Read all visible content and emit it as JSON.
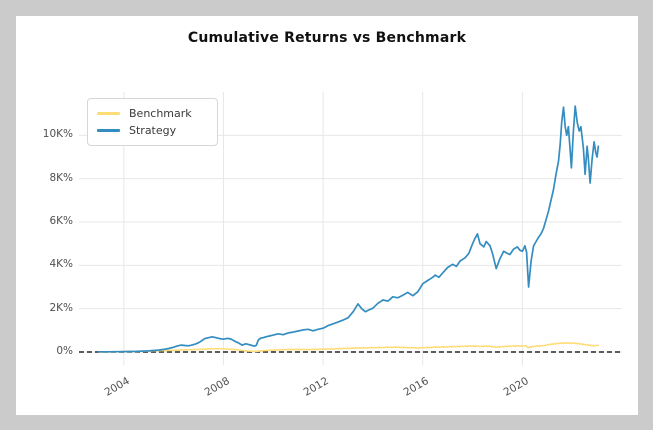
{
  "window": {
    "background_color": "#cbcbcb",
    "figure_background_color": "#ffffff"
  },
  "chart_data": {
    "type": "line",
    "title": "Cumulative Returns vs Benchmark",
    "xlabel": "",
    "ylabel": "",
    "grid": true,
    "grid_color": "#e7e7e7",
    "x_axis": {
      "range": [
        2002.2,
        2024.0
      ],
      "ticks": [
        {
          "value": 2004,
          "label": "2004"
        },
        {
          "value": 2008,
          "label": "2008"
        },
        {
          "value": 2012,
          "label": "2012"
        },
        {
          "value": 2016,
          "label": "2016"
        },
        {
          "value": 2020,
          "label": "2020"
        }
      ],
      "tick_rotation_deg": -30
    },
    "y_axis": {
      "unit": "percent",
      "range": [
        -600,
        12000
      ],
      "ticks": [
        {
          "value": 0,
          "label": "0%"
        },
        {
          "value": 2000,
          "label": "2K%"
        },
        {
          "value": 4000,
          "label": "4K%"
        },
        {
          "value": 6000,
          "label": "6K%"
        },
        {
          "value": 8000,
          "label": "8K%"
        },
        {
          "value": 10000,
          "label": "10K%"
        }
      ]
    },
    "zero_line": {
      "value": 0,
      "style": "dashed",
      "color": "#262626"
    },
    "legend": {
      "position": "upper-left",
      "items": [
        {
          "label": "Benchmark",
          "color": "#fedd78"
        },
        {
          "label": "Strategy",
          "color": "#348dc1"
        }
      ]
    },
    "series": [
      {
        "name": "Benchmark",
        "color": "#fedd78",
        "line_width": 1.6,
        "points": [
          [
            2003.0,
            2
          ],
          [
            2003.5,
            10
          ],
          [
            2004.0,
            20
          ],
          [
            2004.5,
            30
          ],
          [
            2005.0,
            40
          ],
          [
            2005.5,
            60
          ],
          [
            2006.0,
            80
          ],
          [
            2006.5,
            100
          ],
          [
            2007.0,
            120
          ],
          [
            2007.5,
            150
          ],
          [
            2007.8,
            160
          ],
          [
            2008.1,
            140
          ],
          [
            2008.4,
            120
          ],
          [
            2008.7,
            80
          ],
          [
            2009.0,
            40
          ],
          [
            2009.3,
            30
          ],
          [
            2009.6,
            60
          ],
          [
            2010.0,
            90
          ],
          [
            2010.5,
            110
          ],
          [
            2011.0,
            120
          ],
          [
            2011.5,
            110
          ],
          [
            2012.0,
            130
          ],
          [
            2012.5,
            150
          ],
          [
            2013.0,
            170
          ],
          [
            2013.5,
            190
          ],
          [
            2014.0,
            200
          ],
          [
            2014.5,
            210
          ],
          [
            2015.0,
            220
          ],
          [
            2015.5,
            200
          ],
          [
            2015.8,
            190
          ],
          [
            2016.0,
            200
          ],
          [
            2016.5,
            220
          ],
          [
            2017.0,
            240
          ],
          [
            2017.5,
            260
          ],
          [
            2018.0,
            280
          ],
          [
            2018.3,
            260
          ],
          [
            2018.6,
            270
          ],
          [
            2018.95,
            220
          ],
          [
            2019.3,
            260
          ],
          [
            2019.6,
            270
          ],
          [
            2019.9,
            280
          ],
          [
            2020.15,
            280
          ],
          [
            2020.22,
            200
          ],
          [
            2020.35,
            240
          ],
          [
            2020.6,
            270
          ],
          [
            2020.9,
            300
          ],
          [
            2021.1,
            350
          ],
          [
            2021.3,
            380
          ],
          [
            2021.5,
            400
          ],
          [
            2021.7,
            420
          ],
          [
            2021.9,
            410
          ],
          [
            2022.1,
            400
          ],
          [
            2022.3,
            380
          ],
          [
            2022.5,
            340
          ],
          [
            2022.7,
            310
          ],
          [
            2022.85,
            290
          ],
          [
            2023.0,
            300
          ],
          [
            2023.05,
            310
          ]
        ]
      },
      {
        "name": "Strategy",
        "color": "#348dc1",
        "line_width": 1.7,
        "points": [
          [
            2003.0,
            5
          ],
          [
            2003.2,
            8
          ],
          [
            2003.4,
            10
          ],
          [
            2003.6,
            12
          ],
          [
            2003.8,
            15
          ],
          [
            2004.0,
            20
          ],
          [
            2004.25,
            25
          ],
          [
            2004.5,
            30
          ],
          [
            2004.75,
            40
          ],
          [
            2005.0,
            50
          ],
          [
            2005.2,
            70
          ],
          [
            2005.4,
            90
          ],
          [
            2005.6,
            120
          ],
          [
            2005.8,
            160
          ],
          [
            2006.0,
            220
          ],
          [
            2006.15,
            280
          ],
          [
            2006.3,
            320
          ],
          [
            2006.45,
            300
          ],
          [
            2006.6,
            285
          ],
          [
            2006.75,
            330
          ],
          [
            2006.9,
            380
          ],
          [
            2007.0,
            430
          ],
          [
            2007.1,
            500
          ],
          [
            2007.25,
            620
          ],
          [
            2007.4,
            660
          ],
          [
            2007.55,
            700
          ],
          [
            2007.7,
            660
          ],
          [
            2007.85,
            620
          ],
          [
            2008.0,
            590
          ],
          [
            2008.15,
            630
          ],
          [
            2008.3,
            600
          ],
          [
            2008.45,
            500
          ],
          [
            2008.6,
            420
          ],
          [
            2008.75,
            320
          ],
          [
            2008.9,
            380
          ],
          [
            2009.0,
            350
          ],
          [
            2009.15,
            300
          ],
          [
            2009.25,
            270
          ],
          [
            2009.32,
            310
          ],
          [
            2009.4,
            550
          ],
          [
            2009.5,
            640
          ],
          [
            2009.6,
            660
          ],
          [
            2009.7,
            700
          ],
          [
            2009.85,
            740
          ],
          [
            2010.0,
            780
          ],
          [
            2010.2,
            840
          ],
          [
            2010.4,
            800
          ],
          [
            2010.6,
            880
          ],
          [
            2010.8,
            920
          ],
          [
            2011.0,
            970
          ],
          [
            2011.2,
            1020
          ],
          [
            2011.4,
            1050
          ],
          [
            2011.6,
            980
          ],
          [
            2011.8,
            1050
          ],
          [
            2012.0,
            1100
          ],
          [
            2012.2,
            1220
          ],
          [
            2012.4,
            1300
          ],
          [
            2012.6,
            1380
          ],
          [
            2012.8,
            1470
          ],
          [
            2013.0,
            1580
          ],
          [
            2013.2,
            1850
          ],
          [
            2013.4,
            2220
          ],
          [
            2013.55,
            2000
          ],
          [
            2013.7,
            1860
          ],
          [
            2013.85,
            1950
          ],
          [
            2014.0,
            2020
          ],
          [
            2014.2,
            2250
          ],
          [
            2014.4,
            2400
          ],
          [
            2014.6,
            2350
          ],
          [
            2014.8,
            2550
          ],
          [
            2015.0,
            2500
          ],
          [
            2015.2,
            2620
          ],
          [
            2015.4,
            2750
          ],
          [
            2015.6,
            2600
          ],
          [
            2015.8,
            2780
          ],
          [
            2016.0,
            3150
          ],
          [
            2016.2,
            3300
          ],
          [
            2016.4,
            3450
          ],
          [
            2016.5,
            3550
          ],
          [
            2016.65,
            3450
          ],
          [
            2016.8,
            3650
          ],
          [
            2017.0,
            3900
          ],
          [
            2017.2,
            4050
          ],
          [
            2017.35,
            3950
          ],
          [
            2017.5,
            4200
          ],
          [
            2017.7,
            4350
          ],
          [
            2017.85,
            4550
          ],
          [
            2018.0,
            5000
          ],
          [
            2018.1,
            5250
          ],
          [
            2018.2,
            5450
          ],
          [
            2018.3,
            5000
          ],
          [
            2018.45,
            4850
          ],
          [
            2018.55,
            5100
          ],
          [
            2018.7,
            4900
          ],
          [
            2018.8,
            4550
          ],
          [
            2018.95,
            3850
          ],
          [
            2019.1,
            4300
          ],
          [
            2019.25,
            4650
          ],
          [
            2019.4,
            4550
          ],
          [
            2019.5,
            4500
          ],
          [
            2019.65,
            4750
          ],
          [
            2019.8,
            4850
          ],
          [
            2019.9,
            4700
          ],
          [
            2020.0,
            4650
          ],
          [
            2020.1,
            4900
          ],
          [
            2020.17,
            4600
          ],
          [
            2020.25,
            3000
          ],
          [
            2020.35,
            4200
          ],
          [
            2020.45,
            4900
          ],
          [
            2020.55,
            5100
          ],
          [
            2020.65,
            5300
          ],
          [
            2020.75,
            5450
          ],
          [
            2020.85,
            5700
          ],
          [
            2020.95,
            6100
          ],
          [
            2021.05,
            6500
          ],
          [
            2021.15,
            7000
          ],
          [
            2021.25,
            7500
          ],
          [
            2021.35,
            8200
          ],
          [
            2021.45,
            8800
          ],
          [
            2021.52,
            9600
          ],
          [
            2021.58,
            10600
          ],
          [
            2021.65,
            11300
          ],
          [
            2021.72,
            10400
          ],
          [
            2021.78,
            10000
          ],
          [
            2021.85,
            10400
          ],
          [
            2021.9,
            9600
          ],
          [
            2021.97,
            8500
          ],
          [
            2022.05,
            10200
          ],
          [
            2022.12,
            11350
          ],
          [
            2022.2,
            10600
          ],
          [
            2022.28,
            10200
          ],
          [
            2022.35,
            10400
          ],
          [
            2022.45,
            9400
          ],
          [
            2022.52,
            8200
          ],
          [
            2022.6,
            9500
          ],
          [
            2022.65,
            8900
          ],
          [
            2022.72,
            7800
          ],
          [
            2022.8,
            8900
          ],
          [
            2022.88,
            9700
          ],
          [
            2022.95,
            9200
          ],
          [
            2023.0,
            9000
          ],
          [
            2023.05,
            9500
          ]
        ]
      }
    ]
  }
}
